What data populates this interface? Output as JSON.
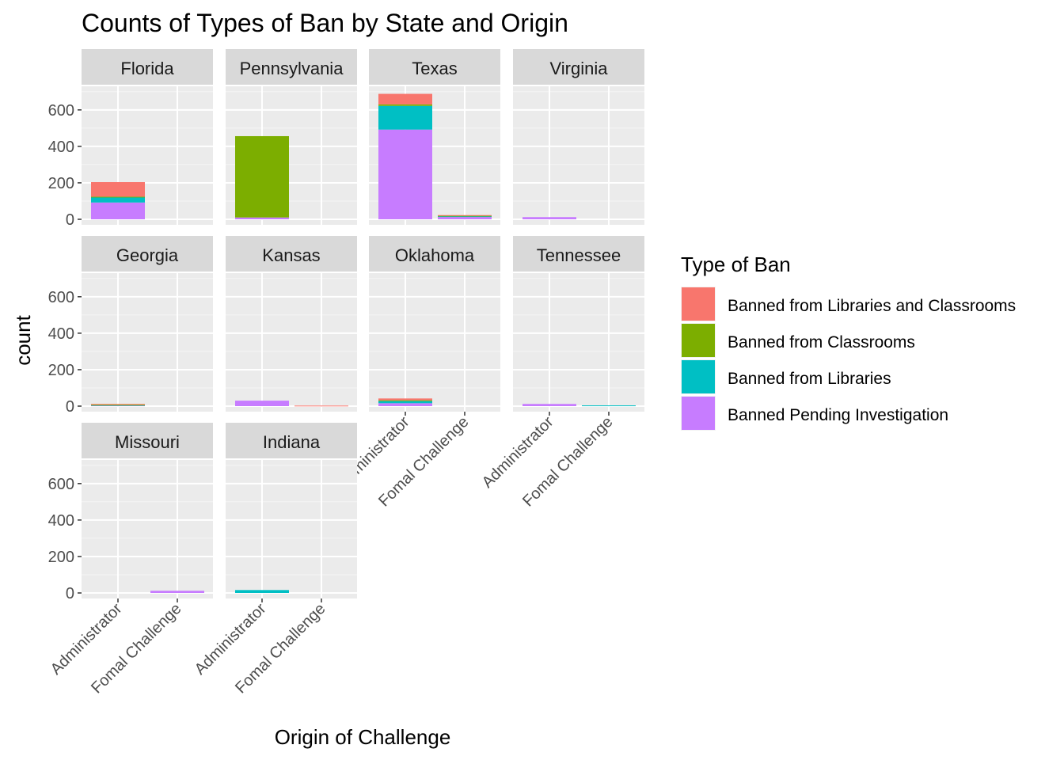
{
  "chart_data": {
    "type": "bar",
    "stacked": true,
    "title": "Counts of Types of Ban by State and Origin",
    "xlabel": "Origin of Challenge",
    "ylabel": "count",
    "ylim": [
      0,
      720
    ],
    "y_ticks": [
      0,
      200,
      400,
      600
    ],
    "categories": [
      "Administrator",
      "Formal Challenge"
    ],
    "category_labels": [
      "Administrator",
      "Fomal Challenge"
    ],
    "legend": {
      "title": "Type of Ban",
      "position": "right",
      "entries": [
        {
          "key": "libraries_classrooms",
          "label": "Banned from Libraries and Classrooms",
          "color": "#F8766D"
        },
        {
          "key": "classrooms",
          "label": "Banned from Classrooms",
          "color": "#7CAE00"
        },
        {
          "key": "libraries",
          "label": "Banned from Libraries",
          "color": "#00BFC4"
        },
        {
          "key": "pending",
          "label": "Banned Pending Investigation",
          "color": "#C77CFF"
        }
      ]
    },
    "stack_order_bottom_to_top": [
      "pending",
      "libraries",
      "classrooms",
      "libraries_classrooms"
    ],
    "facets": [
      {
        "state": "Florida",
        "bars": {
          "Administrator": {
            "pending": 92,
            "libraries": 30,
            "classrooms": 2,
            "libraries_classrooms": 80
          },
          "Formal Challenge": {
            "pending": 0,
            "libraries": 0,
            "classrooms": 0,
            "libraries_classrooms": 0
          }
        }
      },
      {
        "state": "Pennsylvania",
        "bars": {
          "Administrator": {
            "pending": 10,
            "libraries": 0,
            "classrooms": 446,
            "libraries_classrooms": 0
          },
          "Formal Challenge": {
            "pending": 0,
            "libraries": 0,
            "classrooms": 0,
            "libraries_classrooms": 0
          }
        }
      },
      {
        "state": "Texas",
        "bars": {
          "Administrator": {
            "pending": 492,
            "libraries": 130,
            "classrooms": 8,
            "libraries_classrooms": 58
          },
          "Formal Challenge": {
            "pending": 14,
            "libraries": 3,
            "classrooms": 3,
            "libraries_classrooms": 3
          }
        }
      },
      {
        "state": "Virginia",
        "bars": {
          "Administrator": {
            "pending": 12,
            "libraries": 0,
            "classrooms": 0,
            "libraries_classrooms": 0
          },
          "Formal Challenge": {
            "pending": 0,
            "libraries": 0,
            "classrooms": 0,
            "libraries_classrooms": 0
          }
        }
      },
      {
        "state": "Georgia",
        "bars": {
          "Administrator": {
            "pending": 4,
            "libraries": 2,
            "classrooms": 2,
            "libraries_classrooms": 4
          },
          "Formal Challenge": {
            "pending": 0,
            "libraries": 0,
            "classrooms": 0,
            "libraries_classrooms": 0
          }
        }
      },
      {
        "state": "Kansas",
        "bars": {
          "Administrator": {
            "pending": 30,
            "libraries": 0,
            "classrooms": 0,
            "libraries_classrooms": 0
          },
          "Formal Challenge": {
            "pending": 0,
            "libraries": 0,
            "classrooms": 0,
            "libraries_classrooms": 3
          }
        }
      },
      {
        "state": "Oklahoma",
        "bars": {
          "Administrator": {
            "pending": 16,
            "libraries": 12,
            "classrooms": 4,
            "libraries_classrooms": 10
          },
          "Formal Challenge": {
            "pending": 0,
            "libraries": 0,
            "classrooms": 0,
            "libraries_classrooms": 0
          }
        }
      },
      {
        "state": "Tennessee",
        "bars": {
          "Administrator": {
            "pending": 12,
            "libraries": 0,
            "classrooms": 0,
            "libraries_classrooms": 0
          },
          "Formal Challenge": {
            "pending": 0,
            "libraries": 4,
            "classrooms": 0,
            "libraries_classrooms": 0
          }
        }
      },
      {
        "state": "Missouri",
        "bars": {
          "Administrator": {
            "pending": 0,
            "libraries": 0,
            "classrooms": 0,
            "libraries_classrooms": 0
          },
          "Formal Challenge": {
            "pending": 12,
            "libraries": 0,
            "classrooms": 0,
            "libraries_classrooms": 0
          }
        }
      },
      {
        "state": "Indiana",
        "bars": {
          "Administrator": {
            "pending": 0,
            "libraries": 16,
            "classrooms": 0,
            "libraries_classrooms": 0
          },
          "Formal Challenge": {
            "pending": 0,
            "libraries": 0,
            "classrooms": 0,
            "libraries_classrooms": 0
          }
        }
      }
    ]
  }
}
